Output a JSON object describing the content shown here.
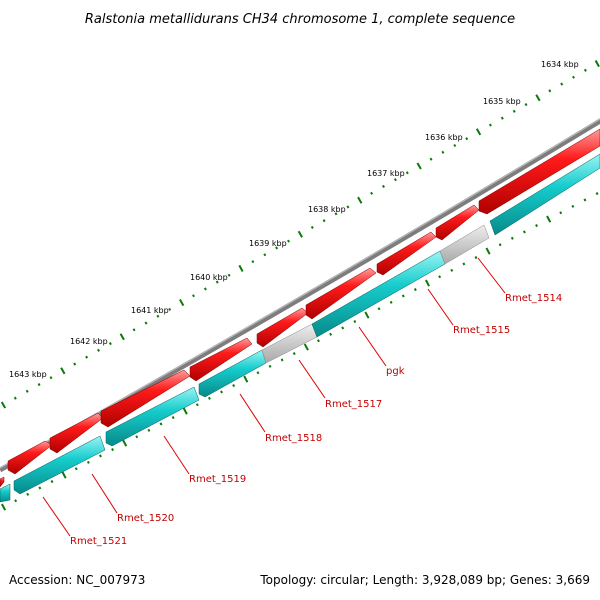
{
  "title": "Ralstonia metallidurans CH34 chromosome 1, complete sequence",
  "footer": {
    "accession": "Accession: NC_007973",
    "topology": "Topology: circular; Length: 3,928,089 bp; Genes: 3,669"
  },
  "colors": {
    "backbone": "#7a7a7a",
    "forward_gene": "#e00000",
    "reverse_gene": "#10c8c8",
    "non_coding": "#c0c0c0",
    "tick": "#0a7a0a",
    "label_line": "#e00000",
    "label_text": "#c00000"
  },
  "ticks": [
    {
      "position_kbp": 1643,
      "label": "1643 kbp"
    },
    {
      "position_kbp": 1642,
      "label": "1642 kbp"
    },
    {
      "position_kbp": 1641,
      "label": "1641 kbp"
    },
    {
      "position_kbp": 1640,
      "label": "1640 kbp"
    },
    {
      "position_kbp": 1639,
      "label": "1639 kbp"
    },
    {
      "position_kbp": 1638,
      "label": "1638 kbp"
    },
    {
      "position_kbp": 1637,
      "label": "1637 kbp"
    },
    {
      "position_kbp": 1636,
      "label": "1636 kbp"
    },
    {
      "position_kbp": 1635,
      "label": "1635 kbp"
    },
    {
      "position_kbp": 1634,
      "label": "1634 kbp"
    }
  ],
  "gene_labels": [
    {
      "name": "Rmet_1514"
    },
    {
      "name": "Rmet_1515"
    },
    {
      "name": "pgk"
    },
    {
      "name": "Rmet_1517"
    },
    {
      "name": "Rmet_1518"
    },
    {
      "name": "Rmet_1519"
    },
    {
      "name": "Rmet_1520"
    },
    {
      "name": "Rmet_1521"
    }
  ]
}
